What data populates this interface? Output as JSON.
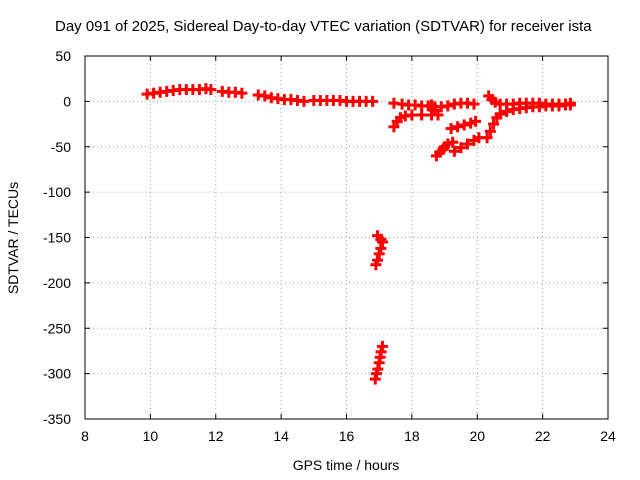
{
  "chart_data": {
    "type": "scatter",
    "title": "Day 091 of 2025, Sidereal Day-to-day VTEC variation (SDTVAR) for receiver ista",
    "xlabel": "GPS time / hours",
    "ylabel": "SDTVAR / TECUs",
    "xlim": [
      8,
      24
    ],
    "ylim": [
      -350,
      50
    ],
    "xticks": [
      "8",
      "10",
      "12",
      "14",
      "16",
      "18",
      "20",
      "22",
      "24"
    ],
    "yticks": [
      "50",
      "0",
      "-50",
      "-100",
      "-150",
      "-200",
      "-250",
      "-300",
      "-350"
    ],
    "grid": true,
    "legend": "none",
    "marker_color": "#ff0000",
    "series": [
      {
        "values": [
          [
            9.9,
            8
          ],
          [
            10.1,
            9
          ],
          [
            10.3,
            10
          ],
          [
            10.5,
            11
          ],
          [
            10.7,
            12
          ],
          [
            10.9,
            13
          ],
          [
            11.1,
            13
          ],
          [
            11.3,
            13
          ],
          [
            11.5,
            13
          ],
          [
            11.7,
            14
          ],
          [
            11.85,
            13
          ],
          [
            12.2,
            11
          ],
          [
            12.4,
            10
          ],
          [
            12.6,
            10
          ],
          [
            12.8,
            9
          ],
          [
            13.3,
            7
          ],
          [
            13.5,
            6
          ],
          [
            13.7,
            4
          ],
          [
            13.9,
            3
          ],
          [
            14.1,
            2
          ],
          [
            14.3,
            2
          ],
          [
            14.5,
            1
          ],
          [
            14.7,
            0
          ],
          [
            15.0,
            1
          ],
          [
            15.2,
            1
          ],
          [
            15.4,
            1
          ],
          [
            15.6,
            1
          ],
          [
            15.8,
            1
          ],
          [
            16.0,
            0
          ],
          [
            16.2,
            0
          ],
          [
            16.4,
            0
          ],
          [
            16.6,
            0
          ],
          [
            16.8,
            0
          ],
          [
            16.95,
            -148
          ],
          [
            17.05,
            -152
          ],
          [
            17.1,
            -155
          ],
          [
            16.9,
            -180
          ],
          [
            16.95,
            -175
          ],
          [
            17.0,
            -168
          ],
          [
            17.05,
            -162
          ],
          [
            16.88,
            -306
          ],
          [
            16.92,
            -300
          ],
          [
            16.96,
            -295
          ],
          [
            17.0,
            -288
          ],
          [
            17.03,
            -282
          ],
          [
            17.06,
            -276
          ],
          [
            17.1,
            -270
          ],
          [
            17.45,
            -2
          ],
          [
            17.7,
            -3
          ],
          [
            17.9,
            -4
          ],
          [
            18.1,
            -4
          ],
          [
            18.3,
            -5
          ],
          [
            18.5,
            -5
          ],
          [
            18.7,
            -6
          ],
          [
            18.9,
            -6
          ],
          [
            19.1,
            -5
          ],
          [
            19.3,
            -3
          ],
          [
            19.5,
            -2
          ],
          [
            19.7,
            -2
          ],
          [
            19.9,
            -3
          ],
          [
            17.45,
            -28
          ],
          [
            17.55,
            -22
          ],
          [
            17.65,
            -18
          ],
          [
            17.8,
            -16
          ],
          [
            18.0,
            -15
          ],
          [
            18.3,
            -15
          ],
          [
            18.6,
            -15
          ],
          [
            18.6,
            -4
          ],
          [
            18.7,
            -10
          ],
          [
            18.8,
            -15
          ],
          [
            18.75,
            -60
          ],
          [
            18.85,
            -56
          ],
          [
            18.95,
            -53
          ],
          [
            19.0,
            -50
          ],
          [
            19.1,
            -47
          ],
          [
            19.25,
            -45
          ],
          [
            19.2,
            -30
          ],
          [
            19.4,
            -28
          ],
          [
            19.6,
            -26
          ],
          [
            19.8,
            -24
          ],
          [
            19.95,
            -22
          ],
          [
            19.3,
            -55
          ],
          [
            19.5,
            -51
          ],
          [
            19.7,
            -47
          ],
          [
            19.9,
            -43
          ],
          [
            20.05,
            -40
          ],
          [
            20.3,
            -40
          ],
          [
            20.4,
            -33
          ],
          [
            20.5,
            -25
          ],
          [
            20.6,
            -18
          ],
          [
            20.7,
            -14
          ],
          [
            20.9,
            -11
          ],
          [
            21.1,
            -9
          ],
          [
            21.3,
            -8
          ],
          [
            21.5,
            -7
          ],
          [
            21.7,
            -6
          ],
          [
            21.9,
            -6
          ],
          [
            22.1,
            -5
          ],
          [
            22.3,
            -5
          ],
          [
            22.5,
            -5
          ],
          [
            22.7,
            -4
          ],
          [
            22.85,
            -4
          ],
          [
            20.35,
            6
          ],
          [
            20.45,
            2
          ],
          [
            20.55,
            -1
          ],
          [
            20.7,
            -3
          ],
          [
            20.9,
            -3
          ],
          [
            21.1,
            -3
          ],
          [
            21.3,
            -2
          ],
          [
            21.5,
            -2
          ],
          [
            21.7,
            -2
          ],
          [
            21.9,
            -2
          ],
          [
            22.1,
            -3
          ],
          [
            22.3,
            -3
          ],
          [
            22.5,
            -3
          ],
          [
            22.7,
            -3
          ],
          [
            22.85,
            -2
          ]
        ]
      }
    ]
  }
}
